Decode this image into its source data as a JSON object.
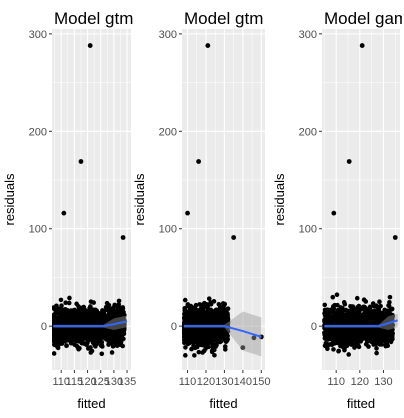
{
  "chart_data": [
    {
      "type": "scatter",
      "title": "Model gtm",
      "xlabel": "fitted",
      "ylabel": "residuals",
      "xticks": [
        110,
        115,
        120,
        125,
        130,
        135
      ],
      "xtick_labels": [
        "110",
        "115",
        "120",
        "125",
        "130",
        "135"
      ],
      "yticks": [
        0,
        100,
        200,
        300
      ],
      "xlim": [
        106.5,
        136.5
      ],
      "ylim": [
        -45,
        305
      ],
      "outliers": [
        {
          "x": 111,
          "y": 116
        },
        {
          "x": 117.5,
          "y": 169
        },
        {
          "x": 121,
          "y": 288
        },
        {
          "x": 133.5,
          "y": 91
        }
      ],
      "cloud": {
        "x_start": 107,
        "x_end": 134,
        "y_low": -30,
        "y_high": 40
      },
      "smooth": {
        "x": [
          107,
          126,
          130,
          135
        ],
        "y": [
          0,
          0,
          2,
          5
        ],
        "band": 6
      },
      "colors": {
        "points": "#000000",
        "smooth": "#3366FF",
        "band": "#999999",
        "panel": "#EBEBEB",
        "grid": "#FFFFFF"
      }
    },
    {
      "type": "scatter",
      "title": "Model gtm",
      "xlabel": "fitted",
      "ylabel": "residuals",
      "xticks": [
        110,
        120,
        130,
        140,
        150
      ],
      "xtick_labels": [
        "110",
        "120",
        "130",
        "140",
        "150"
      ],
      "yticks": [
        0,
        100,
        200,
        300
      ],
      "xlim": [
        107,
        152
      ],
      "ylim": [
        -45,
        305
      ],
      "outliers": [
        {
          "x": 110,
          "y": 116
        },
        {
          "x": 116,
          "y": 169
        },
        {
          "x": 121,
          "y": 288
        },
        {
          "x": 135,
          "y": 91
        },
        {
          "x": 150,
          "y": -11
        },
        {
          "x": 140,
          "y": -22
        },
        {
          "x": 146,
          "y": -12
        }
      ],
      "cloud": {
        "x_start": 108,
        "x_end": 132,
        "y_low": -30,
        "y_high": 40
      },
      "smooth": {
        "x": [
          108,
          130,
          140,
          150
        ],
        "y": [
          0,
          0,
          -5,
          -11
        ],
        "band": 20
      },
      "colors": {
        "points": "#000000",
        "smooth": "#3366FF",
        "band": "#999999",
        "panel": "#EBEBEB",
        "grid": "#FFFFFF"
      }
    },
    {
      "type": "scatter",
      "title": "Model gam",
      "xlabel": "fitted",
      "ylabel": "residuals",
      "xticks": [
        110,
        120,
        130
      ],
      "xtick_labels": [
        "110",
        "120",
        "130"
      ],
      "yticks": [
        0,
        100,
        200,
        300
      ],
      "xlim": [
        104,
        137
      ],
      "ylim": [
        -45,
        305
      ],
      "outliers": [
        {
          "x": 109,
          "y": 116
        },
        {
          "x": 115.5,
          "y": 169
        },
        {
          "x": 121,
          "y": 288
        },
        {
          "x": 135,
          "y": 91
        }
      ],
      "cloud": {
        "x_start": 105,
        "x_end": 134,
        "y_low": -30,
        "y_high": 40
      },
      "smooth": {
        "x": [
          105,
          128,
          132,
          136
        ],
        "y": [
          0,
          0,
          3,
          6
        ],
        "band": 7
      },
      "colors": {
        "points": "#000000",
        "smooth": "#3366FF",
        "band": "#999999",
        "panel": "#EBEBEB",
        "grid": "#FFFFFF"
      }
    }
  ]
}
